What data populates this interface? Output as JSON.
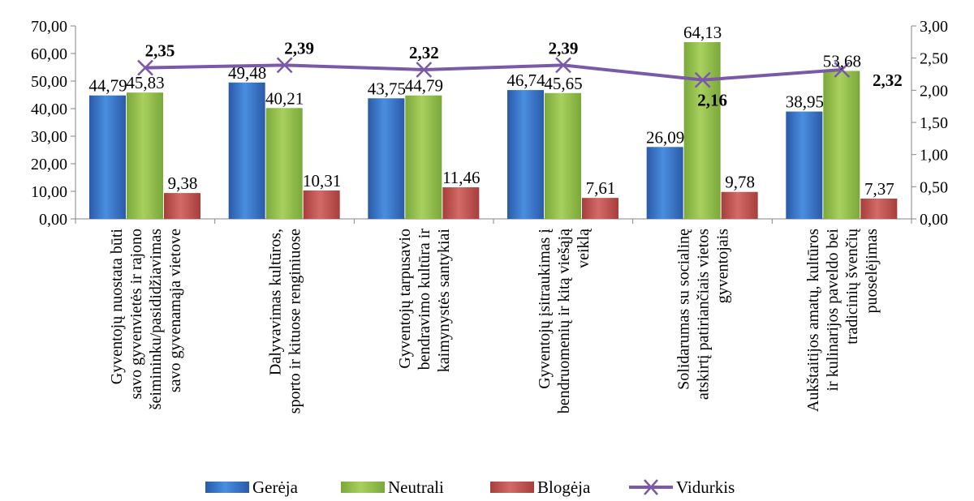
{
  "chart_data": {
    "type": "bar",
    "categories": [
      [
        "Gyventojų nuostata būti",
        "savo gyvenvietės ir rajono",
        "šeimininku/pasididžiavimas",
        "savo gyvenamąja vietove"
      ],
      [
        "Dalyvavimas kultūros,",
        "sporto ir kituose renginiuose"
      ],
      [
        "Gyventojų tarpusavio",
        "bendravimo kultūra ir",
        "kaimynystės santykiai"
      ],
      [
        "Gyventojų įsitraukimas į",
        "bendruomenių ir kitą viešąją",
        "veiklą"
      ],
      [
        "Solidarumas su socialinę",
        "atskirtį patiriančiais vietos",
        "gyventojais"
      ],
      [
        "Aukštaitijos amatų, kultūros",
        "ir kulinarijos paveldo bei",
        "tradicinių švenčių",
        "puoselėjimas"
      ]
    ],
    "series": [
      {
        "name": "Gerėja",
        "values": [
          44.79,
          49.48,
          43.75,
          46.74,
          26.09,
          38.95
        ],
        "labels": [
          "44,79",
          "49,48",
          "43,75",
          "46,74",
          "26,09",
          "38,95"
        ],
        "color": "#2e6fc6"
      },
      {
        "name": "Neutrali",
        "values": [
          45.83,
          40.21,
          44.79,
          45.65,
          64.13,
          53.68
        ],
        "labels": [
          "45,83",
          "40,21",
          "44,79",
          "45,65",
          "64,13",
          "53,68"
        ],
        "color": "#8fbd4a"
      },
      {
        "name": "Blogėja",
        "values": [
          9.38,
          10.31,
          11.46,
          7.61,
          9.78,
          7.37
        ],
        "labels": [
          "9,38",
          "10,31",
          "11,46",
          "7,61",
          "9,78",
          "7,37"
        ],
        "color": "#c0504d"
      }
    ],
    "line_series": {
      "name": "Vidurkis",
      "values": [
        2.35,
        2.39,
        2.32,
        2.39,
        2.16,
        2.32
      ],
      "labels": [
        "2,35",
        "2,39",
        "2,32",
        "2,39",
        "2,16",
        "2,32"
      ],
      "color": "#7a5aa8",
      "axis": "secondary"
    },
    "y_axis": {
      "range": [
        0,
        70
      ],
      "ticks": [
        "0,00",
        "10,00",
        "20,00",
        "30,00",
        "40,00",
        "50,00",
        "60,00",
        "70,00"
      ]
    },
    "y2_axis": {
      "range": [
        0,
        3
      ],
      "ticks": [
        "0,00",
        "0,50",
        "1,00",
        "1,50",
        "2,00",
        "2,50",
        "3,00"
      ]
    },
    "legend": [
      "Gerėja",
      "Neutrali",
      "Blogėja",
      "Vidurkis"
    ],
    "legend_position": "bottom",
    "grid": false
  }
}
